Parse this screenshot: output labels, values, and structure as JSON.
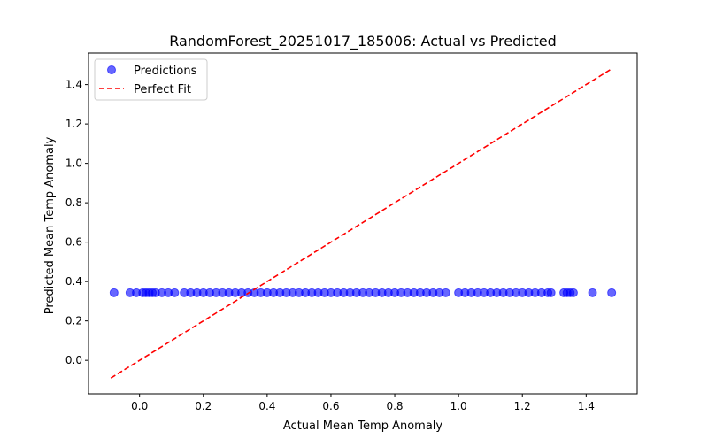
{
  "chart_data": {
    "type": "scatter",
    "title": "RandomForest_20251017_185006: Actual vs Predicted",
    "xlabel": "Actual Mean Temp Anomaly",
    "ylabel": "Predicted Mean Temp Anomaly",
    "xlim": [
      -0.16,
      1.56
    ],
    "ylim": [
      -0.17,
      1.56
    ],
    "xticks": [
      0.0,
      0.2,
      0.4,
      0.6,
      0.8,
      1.0,
      1.2,
      1.4
    ],
    "xtick_labels": [
      "0.0",
      "0.2",
      "0.4",
      "0.6",
      "0.8",
      "1.0",
      "1.2",
      "1.4"
    ],
    "yticks": [
      0.0,
      0.2,
      0.4,
      0.6,
      0.8,
      1.0,
      1.2,
      1.4
    ],
    "ytick_labels": [
      "0.0",
      "0.2",
      "0.4",
      "0.6",
      "0.8",
      "1.0",
      "1.2",
      "1.4"
    ],
    "grid": false,
    "legend_position": "top-left",
    "series": [
      {
        "name": "Predictions",
        "kind": "scatter",
        "color": "#0000ff",
        "opacity": 0.6,
        "x": [
          -0.08,
          -0.03,
          -0.01,
          0.01,
          0.02,
          0.03,
          0.04,
          0.05,
          0.07,
          0.09,
          0.11,
          0.14,
          0.16,
          0.18,
          0.2,
          0.22,
          0.24,
          0.26,
          0.28,
          0.3,
          0.32,
          0.34,
          0.36,
          0.38,
          0.4,
          0.42,
          0.44,
          0.46,
          0.48,
          0.5,
          0.52,
          0.54,
          0.56,
          0.58,
          0.6,
          0.62,
          0.64,
          0.66,
          0.68,
          0.7,
          0.72,
          0.74,
          0.76,
          0.78,
          0.8,
          0.82,
          0.84,
          0.86,
          0.88,
          0.9,
          0.92,
          0.94,
          0.96,
          1.0,
          1.02,
          1.04,
          1.06,
          1.08,
          1.1,
          1.12,
          1.14,
          1.16,
          1.18,
          1.2,
          1.22,
          1.24,
          1.26,
          1.28,
          1.29,
          1.33,
          1.34,
          1.35,
          1.36,
          1.42,
          1.48
        ],
        "y": [
          0.343,
          0.343,
          0.343,
          0.343,
          0.343,
          0.343,
          0.343,
          0.343,
          0.343,
          0.343,
          0.343,
          0.343,
          0.343,
          0.343,
          0.343,
          0.343,
          0.343,
          0.343,
          0.343,
          0.343,
          0.343,
          0.343,
          0.343,
          0.343,
          0.343,
          0.343,
          0.343,
          0.343,
          0.343,
          0.343,
          0.343,
          0.343,
          0.343,
          0.343,
          0.343,
          0.343,
          0.343,
          0.343,
          0.343,
          0.343,
          0.343,
          0.343,
          0.343,
          0.343,
          0.343,
          0.343,
          0.343,
          0.343,
          0.343,
          0.343,
          0.343,
          0.343,
          0.343,
          0.343,
          0.343,
          0.343,
          0.343,
          0.343,
          0.343,
          0.343,
          0.343,
          0.343,
          0.343,
          0.343,
          0.343,
          0.343,
          0.343,
          0.343,
          0.343,
          0.343,
          0.343,
          0.343,
          0.343,
          0.343,
          0.343
        ]
      },
      {
        "name": "Perfect Fit",
        "kind": "line",
        "style": "dashed",
        "color": "#ff0000",
        "x": [
          -0.09,
          1.48
        ],
        "y": [
          -0.09,
          1.48
        ]
      }
    ]
  }
}
